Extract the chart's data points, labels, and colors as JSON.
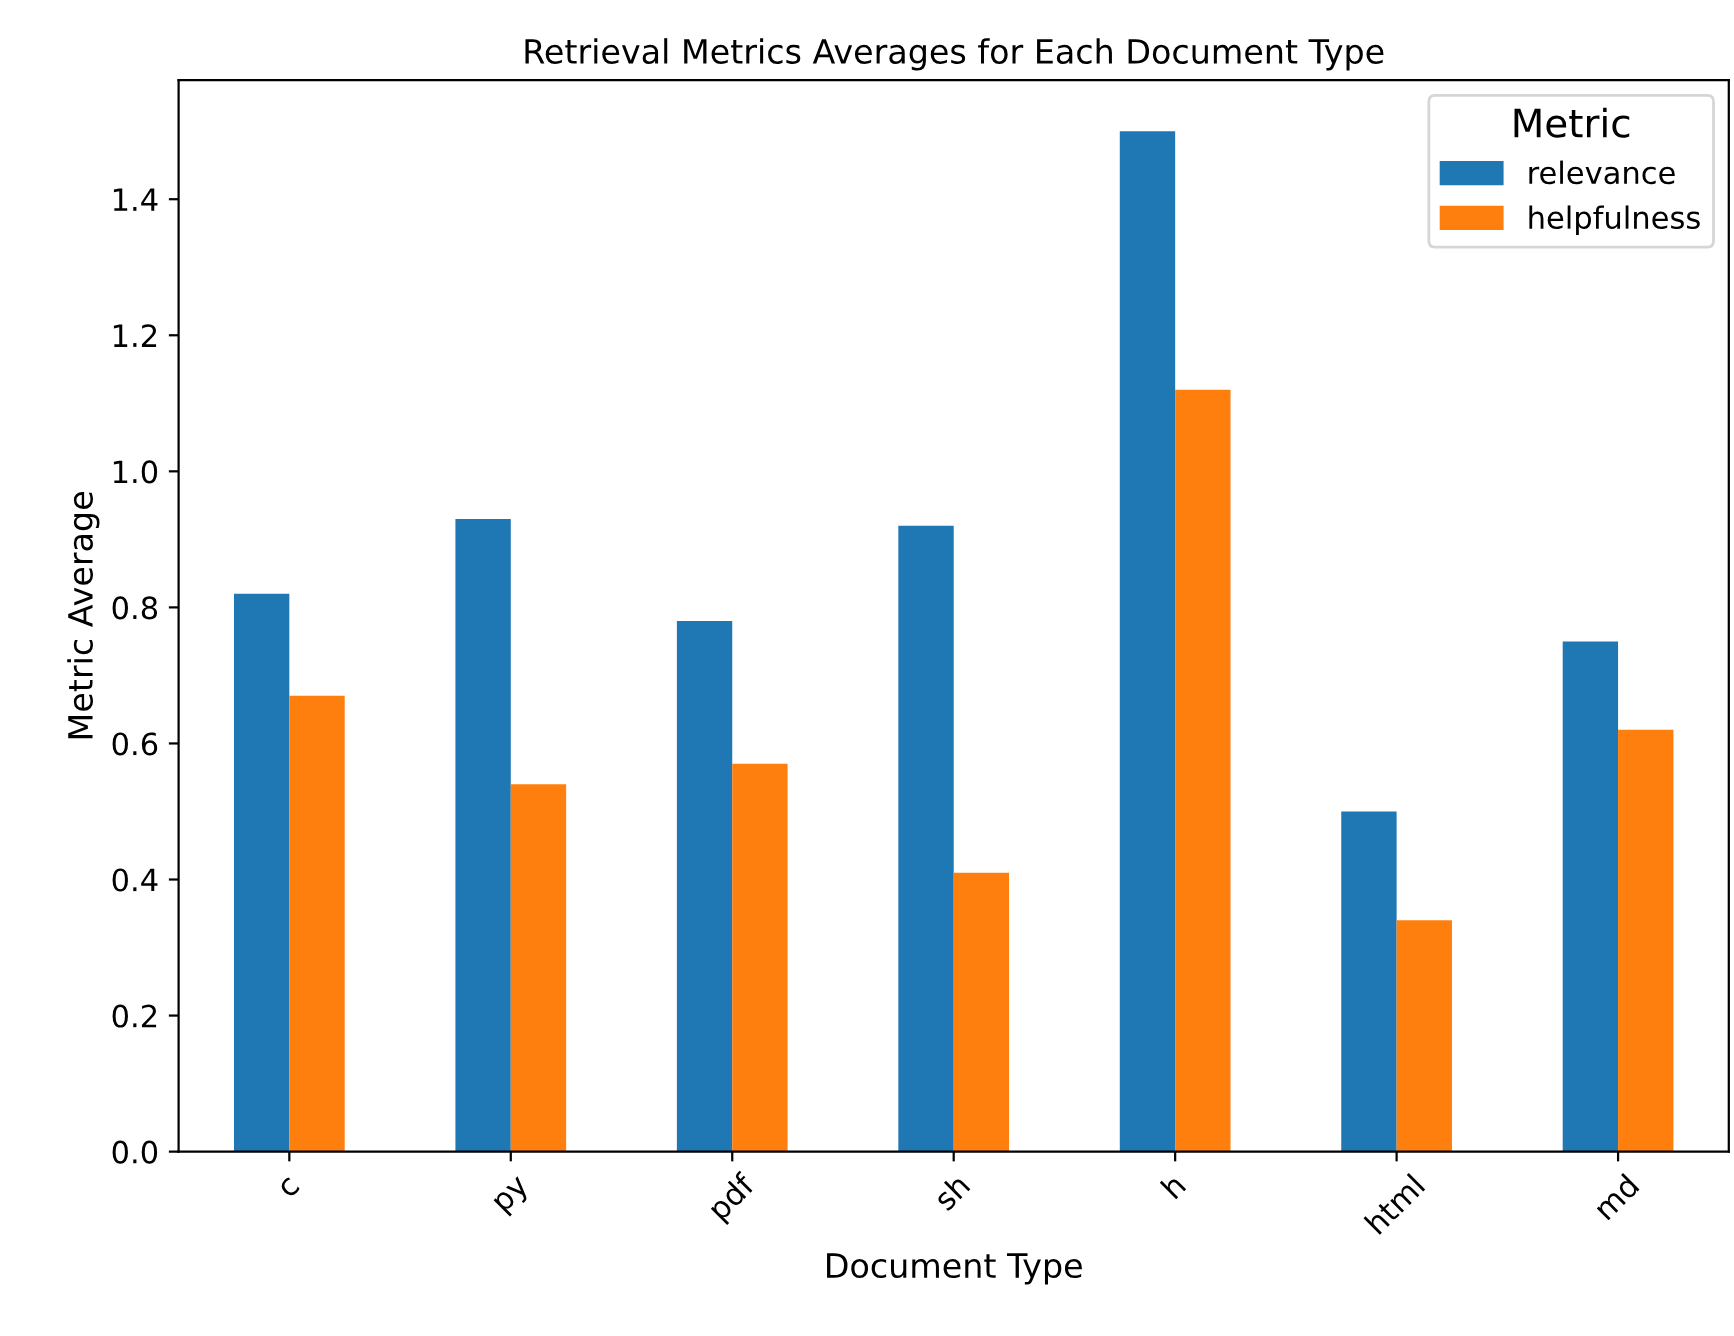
{
  "chart_data": {
    "type": "bar",
    "title": "Retrieval Metrics Averages for Each Document Type",
    "xlabel": "Document Type",
    "ylabel": "Metric Average",
    "legend_title": "Metric",
    "categories": [
      "c",
      "py",
      "pdf",
      "sh",
      "h",
      "html",
      "md"
    ],
    "series": [
      {
        "name": "relevance",
        "color": "#1f77b4",
        "values": [
          0.82,
          0.93,
          0.78,
          0.92,
          1.5,
          0.5,
          0.75
        ]
      },
      {
        "name": "helpfulness",
        "color": "#ff7f0e",
        "values": [
          0.67,
          0.54,
          0.57,
          0.41,
          1.12,
          0.34,
          0.62
        ]
      }
    ],
    "ylim": [
      0,
      1.575
    ],
    "yticks": [
      {
        "value": 0,
        "label": "0.0"
      },
      0.2,
      0.4,
      0.6,
      0.8,
      {
        "value": 1,
        "label": "1.0"
      },
      1.2,
      1.4
    ],
    "grid": false,
    "legend": "top right"
  }
}
